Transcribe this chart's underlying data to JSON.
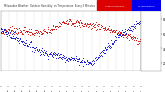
{
  "bg_color": "#ffffff",
  "red_color": "#cc0000",
  "blue_color": "#0000cc",
  "title_red": "#dd0000",
  "title_blue": "#0000ee",
  "n_points": 288,
  "grid_color": "#bbbbbb",
  "ylabel_right": [
    "20",
    "40",
    "60",
    "80"
  ],
  "ylim": [
    10,
    90
  ],
  "title_red_label": "Outdoor Humidity",
  "title_blue_label": "vs Temperature"
}
